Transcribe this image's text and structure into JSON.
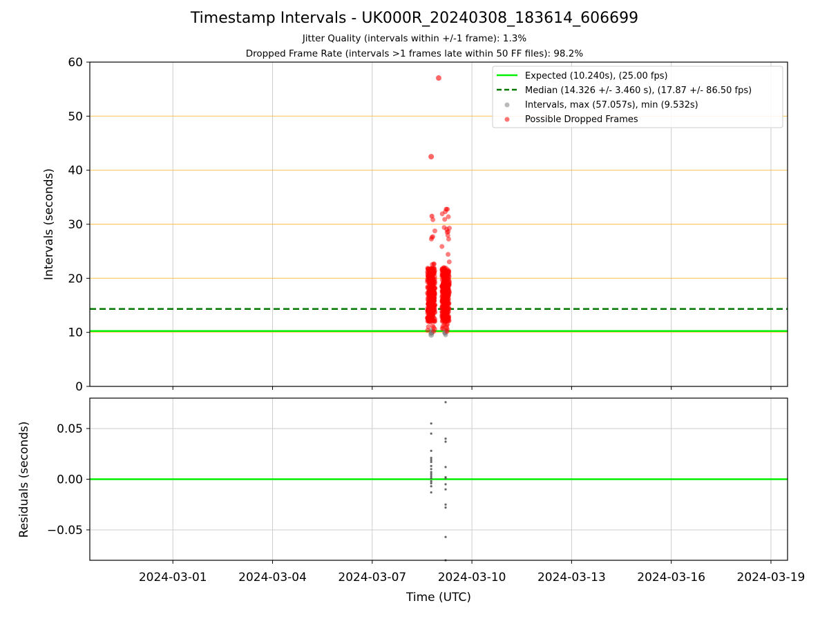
{
  "title": "Timestamp Intervals - UK000R_20240308_183614_606699",
  "subtitle_jitter": "Jitter Quality (intervals within +/-1 frame): 1.3%",
  "subtitle_dropped": "Dropped Frame Rate (intervals >1 frames late within 50 FF files): 98.2%",
  "colors": {
    "expected": "#00ee00",
    "median": "#007700",
    "intervals": "#808080",
    "dropped": "#ff0000",
    "hgrid": "#ffb020",
    "vgrid": "#cccccc",
    "residuals": "#555555"
  },
  "chart_data": [
    {
      "type": "scatter",
      "name": "intervals-panel",
      "ylabel": "Intervals (seconds)",
      "ylim": [
        0,
        60
      ],
      "yticks": [
        "0",
        "10",
        "20",
        "30",
        "40",
        "50",
        "60"
      ],
      "ytick_values": [
        0,
        10,
        20,
        30,
        40,
        50,
        60
      ],
      "xlim_days_from_2024_03_01": [
        -2.5,
        18.5
      ],
      "xticks": [
        "2024-03-01",
        "2024-03-04",
        "2024-03-07",
        "2024-03-10",
        "2024-03-13",
        "2024-03-16",
        "2024-03-19"
      ],
      "grid": true,
      "legend_position": "top-right",
      "expected": 10.24,
      "median": 14.326,
      "legend": [
        "Expected (10.240s), (25.00 fps)",
        "Median (14.326 +/- 3.460 s), (17.87 +/- 86.50 fps)",
        "Intervals, max (57.057s), min (9.532s)",
        "Possible Dropped Frames"
      ],
      "dropped_clusters": [
        {
          "date": "2024-03-08 18:36",
          "intervals_min": 10.0,
          "intervals_max": 31.5
        },
        {
          "date": "2024-03-09 05:00",
          "intervals_min": 10.0,
          "intervals_max": 32.8
        }
      ],
      "notable_points": [
        {
          "date": "2024-03-08 18:36",
          "interval": 42.5
        },
        {
          "date": "2024-03-09 00:00",
          "interval": 57.057
        },
        {
          "date": "2024-03-08 18:36",
          "interval": 9.532
        }
      ]
    },
    {
      "type": "scatter",
      "name": "residuals-panel",
      "ylabel": "Residuals (seconds)",
      "xlabel": "Time (UTC)",
      "ylim": [
        -0.08,
        0.08
      ],
      "yticks": [
        "−0.05",
        "0.00",
        "0.05"
      ],
      "ytick_values": [
        -0.05,
        0.0,
        0.05
      ],
      "grid": true,
      "reference_line": 0.0,
      "residuals": [
        {
          "date": "2024-03-08 18:36",
          "values": [
            0.055,
            0.045,
            0.028,
            0.021,
            0.019,
            0.017,
            0.013,
            0.01,
            0.007,
            0.005,
            0.003,
            0.001,
            -0.002,
            -0.004,
            -0.007,
            -0.013
          ]
        },
        {
          "date": "2024-03-09 05:00",
          "values": [
            0.076,
            0.04,
            0.037,
            0.012,
            0.002,
            0.001,
            -0.005,
            -0.01,
            -0.025,
            -0.028,
            -0.057,
            -0.08
          ]
        }
      ]
    }
  ]
}
